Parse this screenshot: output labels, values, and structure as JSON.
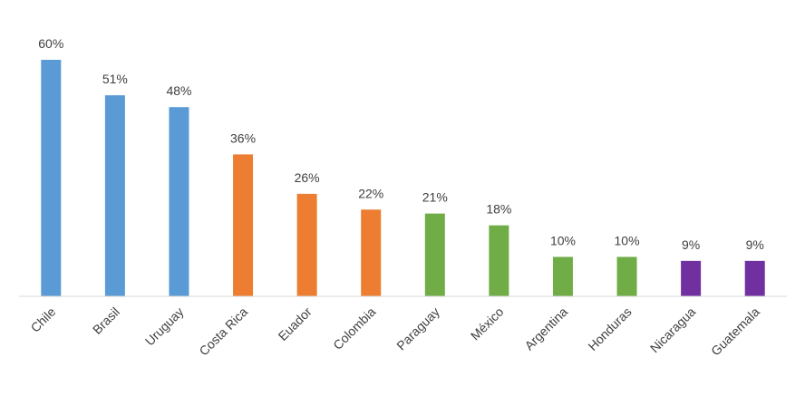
{
  "chart_data": {
    "type": "bar",
    "categories": [
      "Chile",
      "Brasil",
      "Uruguay",
      "Costa Rica",
      "Euador",
      "Colombia",
      "Paraguay",
      "México",
      "Argentina",
      "Honduras",
      "Nicaragua",
      "Guatemala"
    ],
    "values": [
      60,
      51,
      48,
      36,
      26,
      22,
      21,
      18,
      10,
      10,
      9,
      9
    ],
    "value_labels": [
      "60%",
      "51%",
      "48%",
      "36%",
      "26%",
      "22%",
      "21%",
      "18%",
      "10%",
      "10%",
      "9%",
      "9%"
    ],
    "colors": [
      "#5b9bd5",
      "#5b9bd5",
      "#5b9bd5",
      "#ed7d31",
      "#ed7d31",
      "#ed7d31",
      "#70ad47",
      "#70ad47",
      "#70ad47",
      "#70ad47",
      "#7030a0",
      "#7030a0"
    ]
  }
}
